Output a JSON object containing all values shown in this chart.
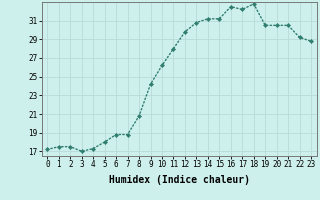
{
  "x": [
    0,
    1,
    2,
    3,
    4,
    5,
    6,
    7,
    8,
    9,
    10,
    11,
    12,
    13,
    14,
    15,
    16,
    17,
    18,
    19,
    20,
    21,
    22,
    23
  ],
  "y": [
    17.2,
    17.5,
    17.5,
    17.0,
    17.3,
    18.0,
    18.8,
    18.8,
    20.8,
    24.2,
    26.2,
    28.0,
    29.8,
    30.8,
    31.2,
    31.2,
    32.5,
    32.2,
    32.8,
    30.5,
    30.5,
    30.5,
    29.2,
    28.8
  ],
  "line_color": "#2e7d6e",
  "marker": "D",
  "marker_size": 2.2,
  "bg_color": "#cef0ec",
  "grid_color": "#b8dbd7",
  "xlabel": "Humidex (Indice chaleur)",
  "ylim": [
    16.5,
    33.0
  ],
  "xlim": [
    -0.5,
    23.5
  ],
  "yticks": [
    17,
    19,
    21,
    23,
    25,
    27,
    29,
    31
  ],
  "xticks": [
    0,
    1,
    2,
    3,
    4,
    5,
    6,
    7,
    8,
    9,
    10,
    11,
    12,
    13,
    14,
    15,
    16,
    17,
    18,
    19,
    20,
    21,
    22,
    23
  ],
  "tick_fontsize": 5.5,
  "xlabel_fontsize": 7.0,
  "line_width": 1.0,
  "marker_color": "#2e7d6e",
  "spine_color": "#777777"
}
